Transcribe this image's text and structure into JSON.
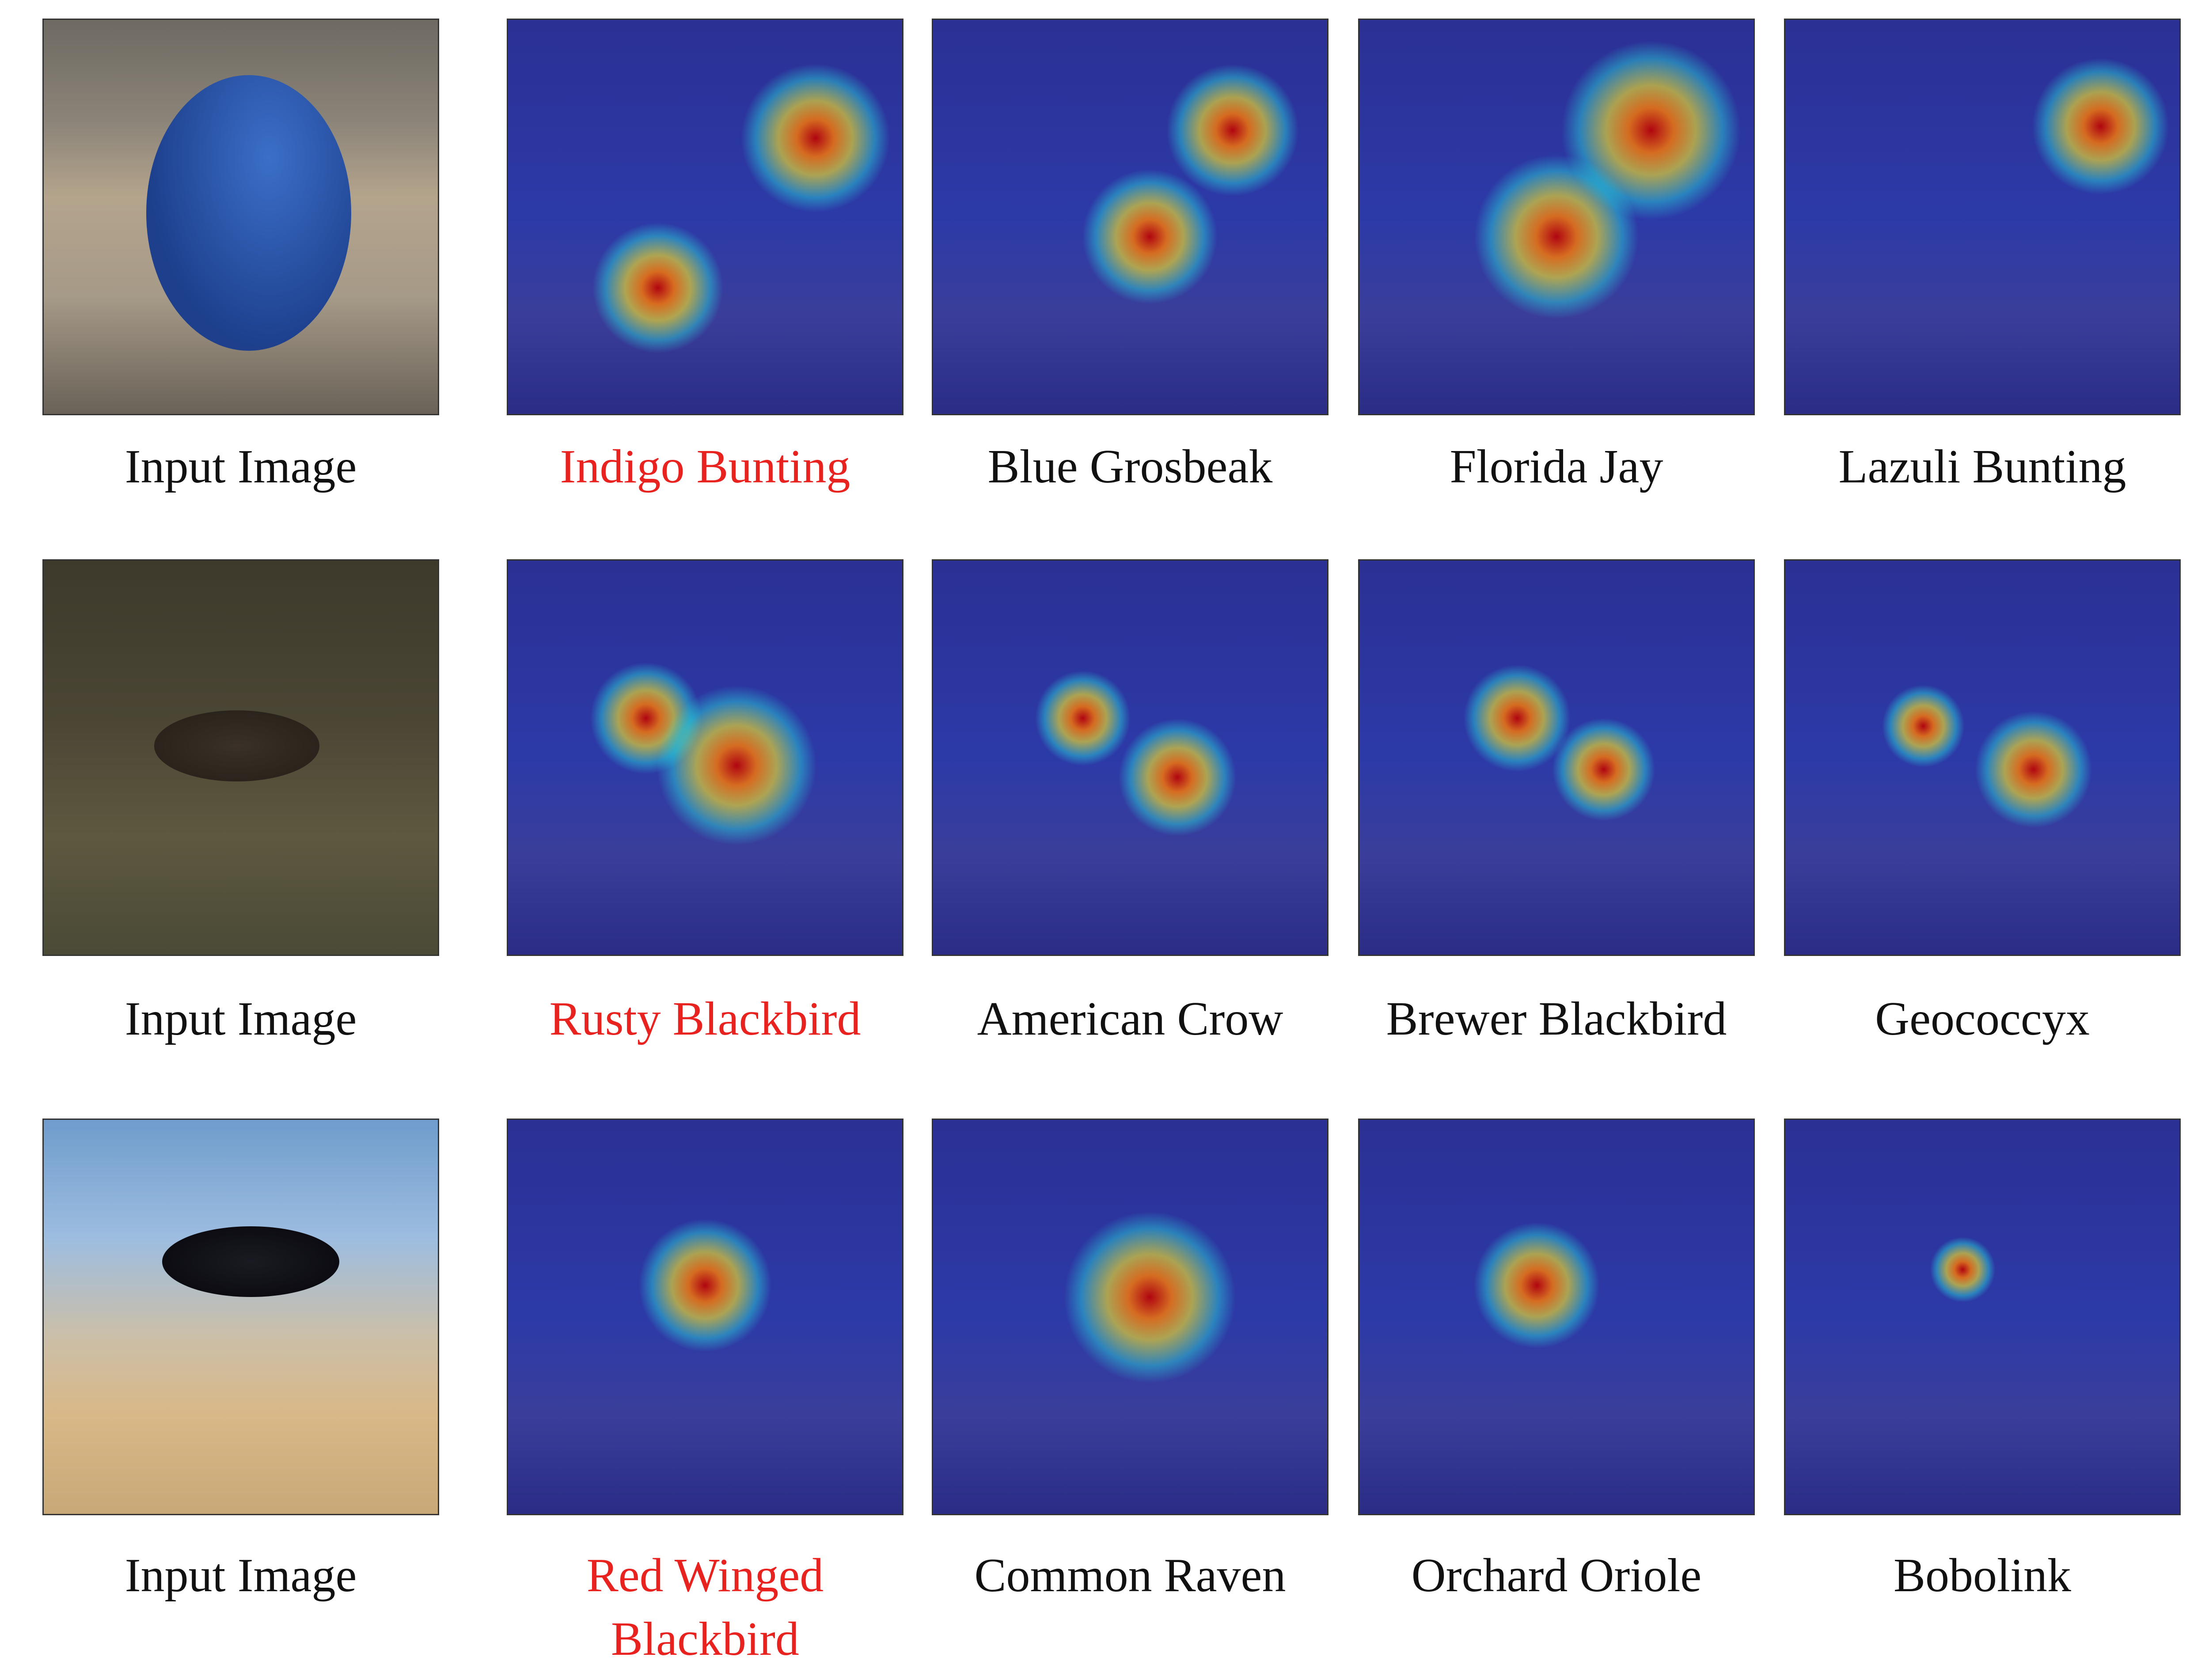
{
  "rows": [
    {
      "input_label": "Input Image",
      "classes": [
        "Indigo Bunting",
        "Blue Grosbeak",
        "Florida Jay",
        "Lazuli Bunting"
      ]
    },
    {
      "input_label": "Input Image",
      "classes": [
        "Rusty Blackbird",
        "American Crow",
        "Brewer Blackbird",
        "Geococcyx"
      ]
    },
    {
      "input_label": "Input Image",
      "classes": [
        "Red Winged Blackbird",
        "Common Raven",
        "Orchard Oriole",
        "Bobolink"
      ]
    }
  ]
}
